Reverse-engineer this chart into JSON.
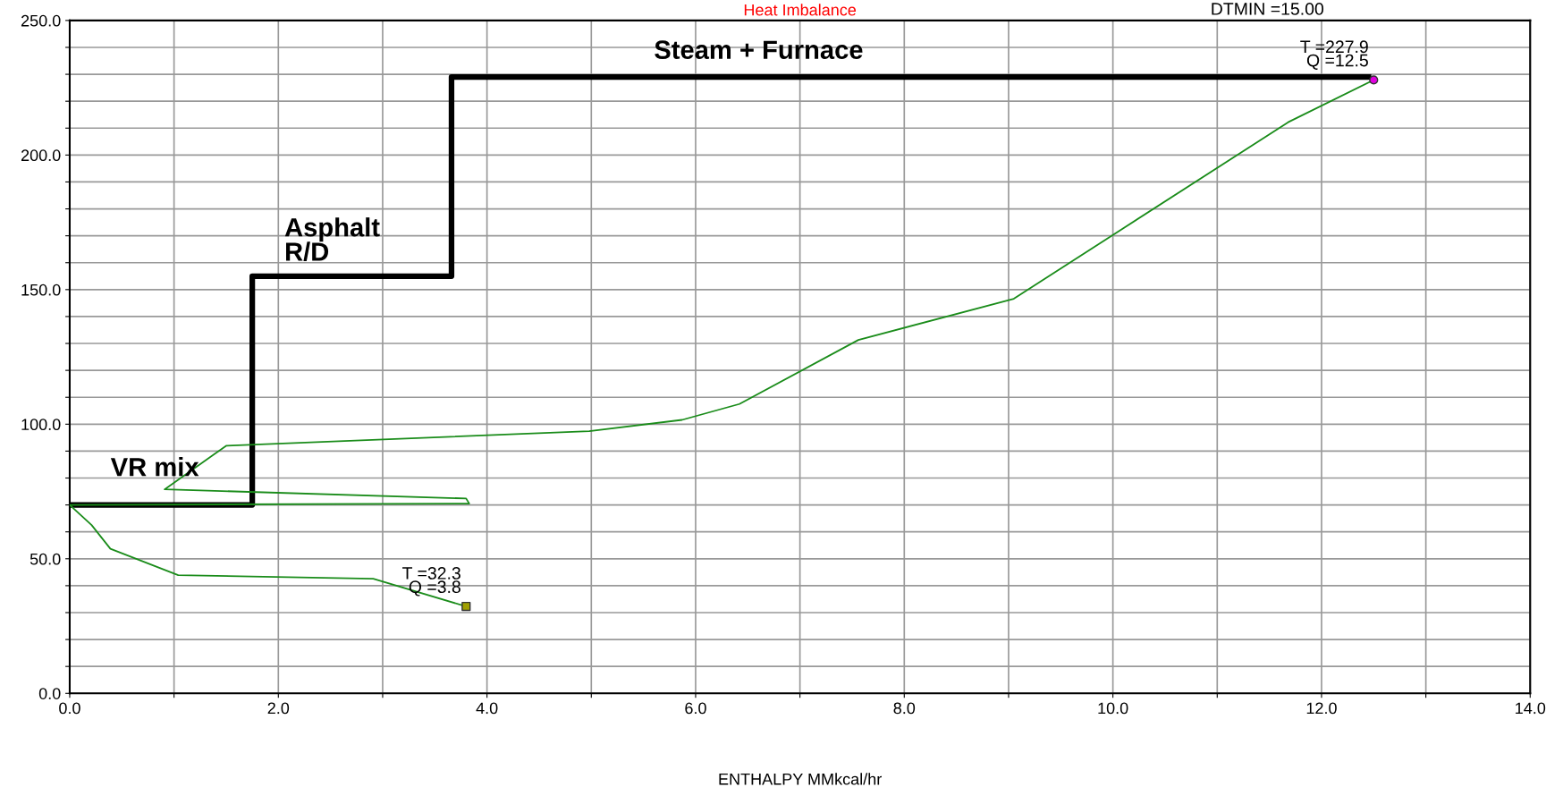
{
  "chart_data": {
    "type": "line",
    "title": "Heat Imbalance",
    "xlabel": "ENTHALPY MMkcal/hr",
    "xlim": [
      0,
      14
    ],
    "ylim": [
      0,
      250
    ],
    "xticks": [
      {
        "value": 0,
        "label": "0.0"
      },
      {
        "value": 1,
        "label": null
      },
      {
        "value": 2,
        "label": "2.0"
      },
      {
        "value": 3,
        "label": null
      },
      {
        "value": 4,
        "label": "4.0"
      },
      {
        "value": 5,
        "label": null
      },
      {
        "value": 6,
        "label": "6.0"
      },
      {
        "value": 7,
        "label": null
      },
      {
        "value": 8,
        "label": "8.0"
      },
      {
        "value": 9,
        "label": null
      },
      {
        "value": 10,
        "label": "10.0"
      },
      {
        "value": 11,
        "label": null
      },
      {
        "value": 12,
        "label": "12.0"
      },
      {
        "value": 13,
        "label": null
      },
      {
        "value": 14,
        "label": "14.0"
      }
    ],
    "yticks": [
      {
        "value": 0,
        "label": "0.0"
      },
      {
        "value": 10,
        "label": null
      },
      {
        "value": 20,
        "label": null
      },
      {
        "value": 30,
        "label": null
      },
      {
        "value": 40,
        "label": null
      },
      {
        "value": 50,
        "label": "50.0"
      },
      {
        "value": 60,
        "label": null
      },
      {
        "value": 70,
        "label": null
      },
      {
        "value": 80,
        "label": null
      },
      {
        "value": 90,
        "label": null
      },
      {
        "value": 100,
        "label": "100.0"
      },
      {
        "value": 110,
        "label": null
      },
      {
        "value": 120,
        "label": null
      },
      {
        "value": 130,
        "label": null
      },
      {
        "value": 140,
        "label": null
      },
      {
        "value": 150,
        "label": "150.0"
      },
      {
        "value": 160,
        "label": null
      },
      {
        "value": 170,
        "label": null
      },
      {
        "value": 180,
        "label": null
      },
      {
        "value": 190,
        "label": null
      },
      {
        "value": 200,
        "label": "200.0"
      },
      {
        "value": 210,
        "label": null
      },
      {
        "value": 220,
        "label": null
      },
      {
        "value": 230,
        "label": null
      },
      {
        "value": 240,
        "label": null
      },
      {
        "value": 250,
        "label": "250.0"
      }
    ],
    "grid": true,
    "series": [
      {
        "color": "#000000",
        "x": [
          0,
          1.75,
          1.75,
          3.66,
          3.66,
          12.45
        ],
        "values": [
          70,
          70,
          155,
          155,
          229,
          229
        ]
      },
      {
        "color": "#1a8c1a",
        "x": [
          3.8,
          2.91,
          1.04,
          0.39,
          0.21,
          0,
          3.83,
          3.8,
          0.91,
          1.5,
          4.98,
          5.87,
          6.42,
          7.56,
          9.05,
          11.68,
          12.5
        ],
        "values": [
          32.3,
          42.6,
          43.9,
          53.7,
          62.5,
          70,
          70.5,
          72.4,
          75.8,
          92,
          97.4,
          101.6,
          107.5,
          131.3,
          146.6,
          212.2,
          227.9
        ]
      },
      {
        "type": "scatter",
        "color": "#a0a000",
        "marker": "square",
        "x": [
          3.8
        ],
        "values": [
          32.3
        ]
      },
      {
        "type": "scatter",
        "color": "#e000e0",
        "marker": "circle",
        "x": [
          12.5
        ],
        "values": [
          227.9
        ]
      }
    ],
    "annotations": [
      "DTMIN =15.00",
      "Steam + Furnace",
      "Asphalt\nR/D",
      "VR mix",
      {
        "text": "T =32.3\nQ =3.8",
        "x": 3.8,
        "y": 32.3
      },
      {
        "text": "T =227.9\nQ =12.5",
        "x": 12.5,
        "y": 227.9
      }
    ]
  }
}
